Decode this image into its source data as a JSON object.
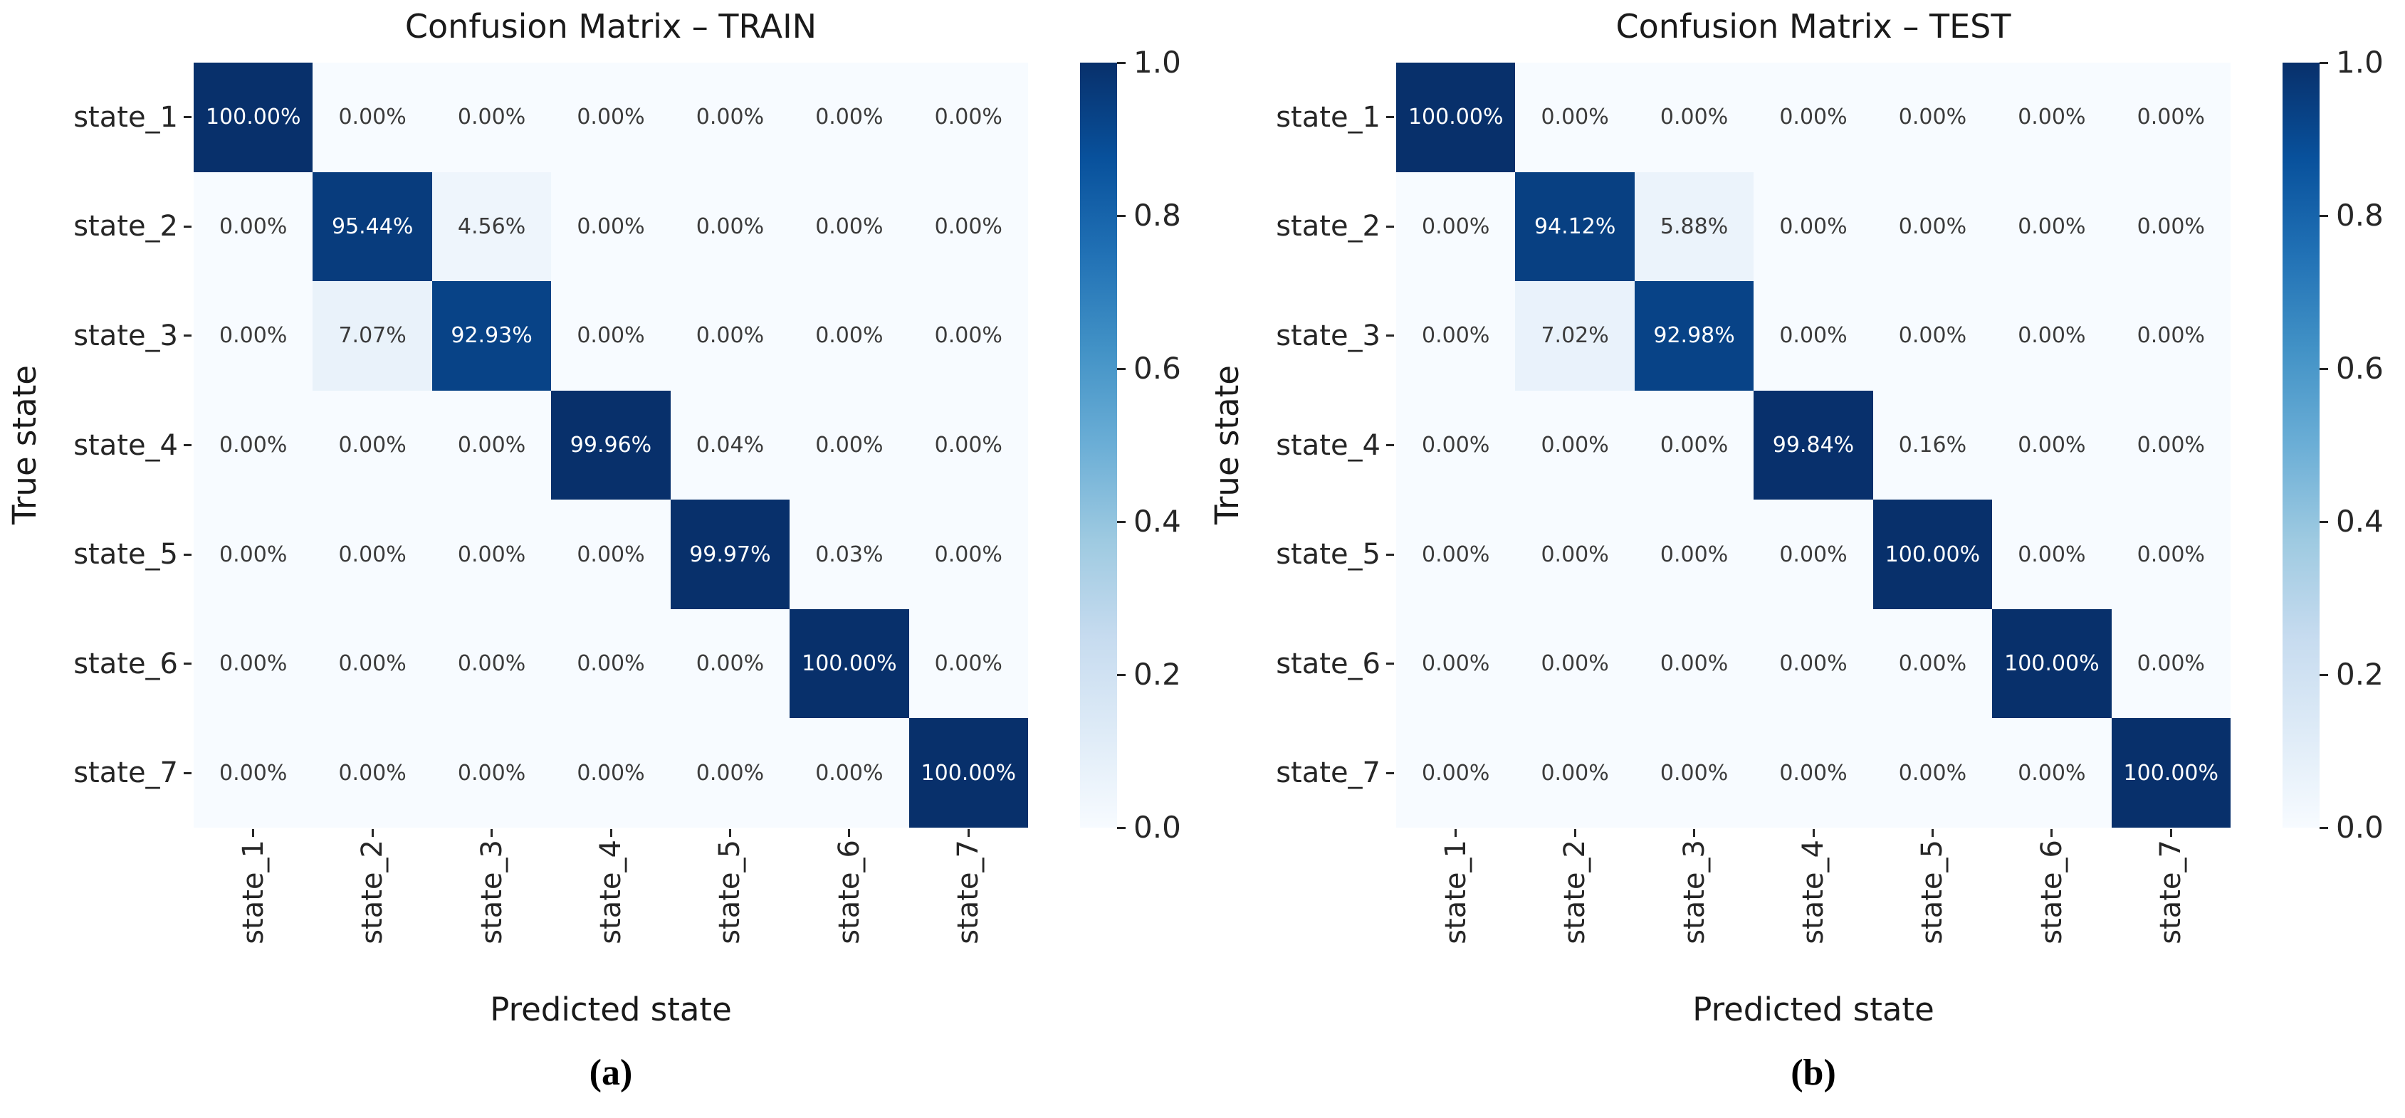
{
  "figure": {
    "captions": {
      "a": "(a)",
      "b": "(b)"
    }
  },
  "colors": {
    "colormap": "Blues",
    "colormap_stops": [
      "#f7fbff",
      "#deebf7",
      "#c6dbef",
      "#9ecae1",
      "#6baed6",
      "#4292c6",
      "#2171b5",
      "#08519c",
      "#08306b"
    ],
    "cell_text_dark": "#3b3b3b",
    "cell_text_light": "#ffffff",
    "tick_text": "#262626"
  },
  "chart_data": [
    {
      "type": "heatmap",
      "panel": "train",
      "title": "Confusion Matrix – TRAIN",
      "xlabel": "Predicted state",
      "ylabel": "True state",
      "x_categories": [
        "state_1",
        "state_2",
        "state_3",
        "state_4",
        "state_5",
        "state_6",
        "state_7"
      ],
      "y_categories": [
        "state_1",
        "state_2",
        "state_3",
        "state_4",
        "state_5",
        "state_6",
        "state_7"
      ],
      "values_percent": [
        [
          100.0,
          0.0,
          0.0,
          0.0,
          0.0,
          0.0,
          0.0
        ],
        [
          0.0,
          95.44,
          4.56,
          0.0,
          0.0,
          0.0,
          0.0
        ],
        [
          0.0,
          7.07,
          92.93,
          0.0,
          0.0,
          0.0,
          0.0
        ],
        [
          0.0,
          0.0,
          0.0,
          99.96,
          0.04,
          0.0,
          0.0
        ],
        [
          0.0,
          0.0,
          0.0,
          0.0,
          99.97,
          0.03,
          0.0
        ],
        [
          0.0,
          0.0,
          0.0,
          0.0,
          0.0,
          100.0,
          0.0
        ],
        [
          0.0,
          0.0,
          0.0,
          0.0,
          0.0,
          0.0,
          100.0
        ]
      ],
      "value_range": [
        0,
        1
      ],
      "colorbar_ticks": [
        "1.0",
        "0.8",
        "0.6",
        "0.4",
        "0.2",
        "0.0"
      ]
    },
    {
      "type": "heatmap",
      "panel": "test",
      "title": "Confusion Matrix – TEST",
      "xlabel": "Predicted state",
      "ylabel": "True state",
      "x_categories": [
        "state_1",
        "state_2",
        "state_3",
        "state_4",
        "state_5",
        "state_6",
        "state_7"
      ],
      "y_categories": [
        "state_1",
        "state_2",
        "state_3",
        "state_4",
        "state_5",
        "state_6",
        "state_7"
      ],
      "values_percent": [
        [
          100.0,
          0.0,
          0.0,
          0.0,
          0.0,
          0.0,
          0.0
        ],
        [
          0.0,
          94.12,
          5.88,
          0.0,
          0.0,
          0.0,
          0.0
        ],
        [
          0.0,
          7.02,
          92.98,
          0.0,
          0.0,
          0.0,
          0.0
        ],
        [
          0.0,
          0.0,
          0.0,
          99.84,
          0.16,
          0.0,
          0.0
        ],
        [
          0.0,
          0.0,
          0.0,
          0.0,
          100.0,
          0.0,
          0.0
        ],
        [
          0.0,
          0.0,
          0.0,
          0.0,
          0.0,
          100.0,
          0.0
        ],
        [
          0.0,
          0.0,
          0.0,
          0.0,
          0.0,
          0.0,
          100.0
        ]
      ],
      "value_range": [
        0,
        1
      ],
      "colorbar_ticks": [
        "1.0",
        "0.8",
        "0.6",
        "0.4",
        "0.2",
        "0.0"
      ]
    }
  ]
}
